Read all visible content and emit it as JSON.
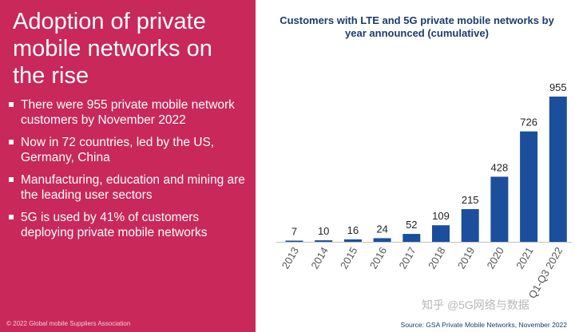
{
  "left": {
    "headline": "Adoption of private mobile networks on the rise",
    "bullets": [
      "There were 955 private mobile network customers by November 2022",
      "Now in 72 countries, led by the US, Germany, China",
      "Manufacturing, education and mining are the leading user sectors",
      "5G is used by 41% of customers deploying private mobile networks"
    ],
    "copyright": "© 2022 Global mobile Suppliers Association"
  },
  "source": "Source: GSA Private Mobile Networks, November 2022",
  "watermark": "知乎 @5G网络与数据",
  "colors": {
    "panel": "#c8285a",
    "bar": "#1b4f9c",
    "title": "#1d3b6e"
  },
  "chart_data": {
    "type": "bar",
    "title": "Customers with LTE and 5G private mobile networks by year announced (cumulative)",
    "categories": [
      "2013",
      "2014",
      "2015",
      "2016",
      "2017",
      "2018",
      "2019",
      "2020",
      "2021",
      "Q1-Q3 2022"
    ],
    "values": [
      7,
      10,
      16,
      24,
      52,
      109,
      215,
      428,
      726,
      955
    ],
    "xlabel": "",
    "ylabel": "",
    "ylim": [
      0,
      955
    ],
    "grid": false,
    "data_labels": true
  }
}
